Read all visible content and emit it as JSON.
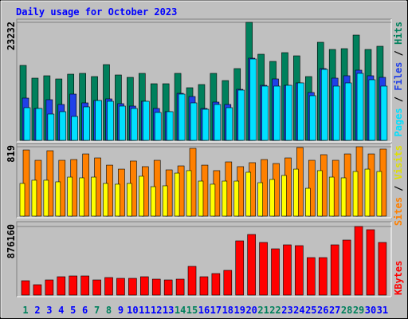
{
  "title": "Daily usage for October 2023",
  "legend_separator": " / ",
  "chart_data": [
    {
      "type": "bar",
      "ylim": [
        0,
        23232
      ],
      "yticks": [
        23232
      ],
      "series": [
        {
          "name": "Pages",
          "color": "#00e0ff",
          "values": [
            6437,
            6280,
            5181,
            5652,
            4710,
            6594,
            7850,
            7693,
            6751,
            6280,
            7693,
            5495,
            5652,
            9106,
            7379,
            6123,
            7065,
            6437,
            9891,
            16014,
            10676,
            10676,
            10833,
            11304,
            8792,
            13973,
            10676,
            11304,
            13188,
            11932,
            10676
          ]
        },
        {
          "name": "Files",
          "color": "#2040e8",
          "values": [
            8321,
            6280,
            8007,
            7065,
            9106,
            7379,
            7850,
            8164,
            7222,
            6751,
            7693,
            6280,
            5652,
            9263,
            8635,
            6280,
            7536,
            7065,
            10048,
            16171,
            10833,
            12089,
            10833,
            11304,
            9420,
            14130,
            12246,
            12717,
            13816,
            12717,
            12403
          ]
        },
        {
          "name": "Hits",
          "color": "#00805c",
          "values": [
            14755,
            12244,
            12715,
            12087,
            13029,
            13186,
            12558,
            14912,
            12872,
            12401,
            13186,
            11145,
            11145,
            13186,
            10360,
            10988,
            13186,
            11773,
            14128,
            23232,
            16953,
            15540,
            17267,
            16639,
            12558,
            19308,
            17895,
            18052,
            20721,
            17895,
            18523
          ]
        }
      ]
    },
    {
      "type": "bar",
      "ylim": [
        0,
        819
      ],
      "yticks": [
        819
      ],
      "series": [
        {
          "name": "Sites",
          "color": "#ff8000",
          "values": [
            781,
            659,
            772,
            659,
            668,
            734,
            687,
            602,
            555,
            650,
            584,
            659,
            546,
            593,
            800,
            602,
            537,
            640,
            584,
            631,
            668,
            621,
            687,
            810,
            659,
            725,
            659,
            734,
            819,
            734,
            791
          ]
        },
        {
          "name": "Visits",
          "color": "#ffff00",
          "values": [
            386,
            424,
            424,
            405,
            461,
            452,
            461,
            386,
            377,
            386,
            471,
            348,
            358,
            508,
            537,
            414,
            377,
            414,
            414,
            518,
            395,
            433,
            480,
            555,
            329,
            537,
            461,
            452,
            527,
            555,
            527
          ]
        }
      ]
    },
    {
      "type": "bar",
      "ylim": [
        0,
        876160
      ],
      "yticks": [
        876160
      ],
      "categories": [
        "1",
        "2",
        "3",
        "4",
        "5",
        "6",
        "7",
        "8",
        "9",
        "10",
        "11",
        "12",
        "13",
        "14",
        "15",
        "16",
        "17",
        "18",
        "19",
        "20",
        "21",
        "22",
        "23",
        "24",
        "25",
        "26",
        "27",
        "28",
        "29",
        "30",
        "31"
      ],
      "category_colors": [
        "#00805c",
        "#0000ff",
        "#0000ff",
        "#0000ff",
        "#0000ff",
        "#0000ff",
        "#00805c",
        "#00805c",
        "#0000ff",
        "#0000ff",
        "#0000ff",
        "#0000ff",
        "#0000ff",
        "#00805c",
        "#00805c",
        "#0000ff",
        "#0000ff",
        "#0000ff",
        "#0000ff",
        "#0000ff",
        "#00805c",
        "#00805c",
        "#0000ff",
        "#0000ff",
        "#0000ff",
        "#0000ff",
        "#0000ff",
        "#00805c",
        "#00805c",
        "#0000ff",
        "#0000ff"
      ],
      "series": [
        {
          "name": "KBytes",
          "color": "#ff0000",
          "values": [
            183384,
            132444,
            193572,
            234324,
            244512,
            244512,
            193572,
            224136,
            213948,
            213948,
            234324,
            203760,
            193572,
            203760,
            366768,
            234324,
            275076,
            315828,
            692784,
            774288,
            672408,
            590904,
            641844,
            631656,
            478836,
            478836,
            641844,
            702972,
            876160,
            835416,
            672408
          ]
        }
      ]
    }
  ]
}
